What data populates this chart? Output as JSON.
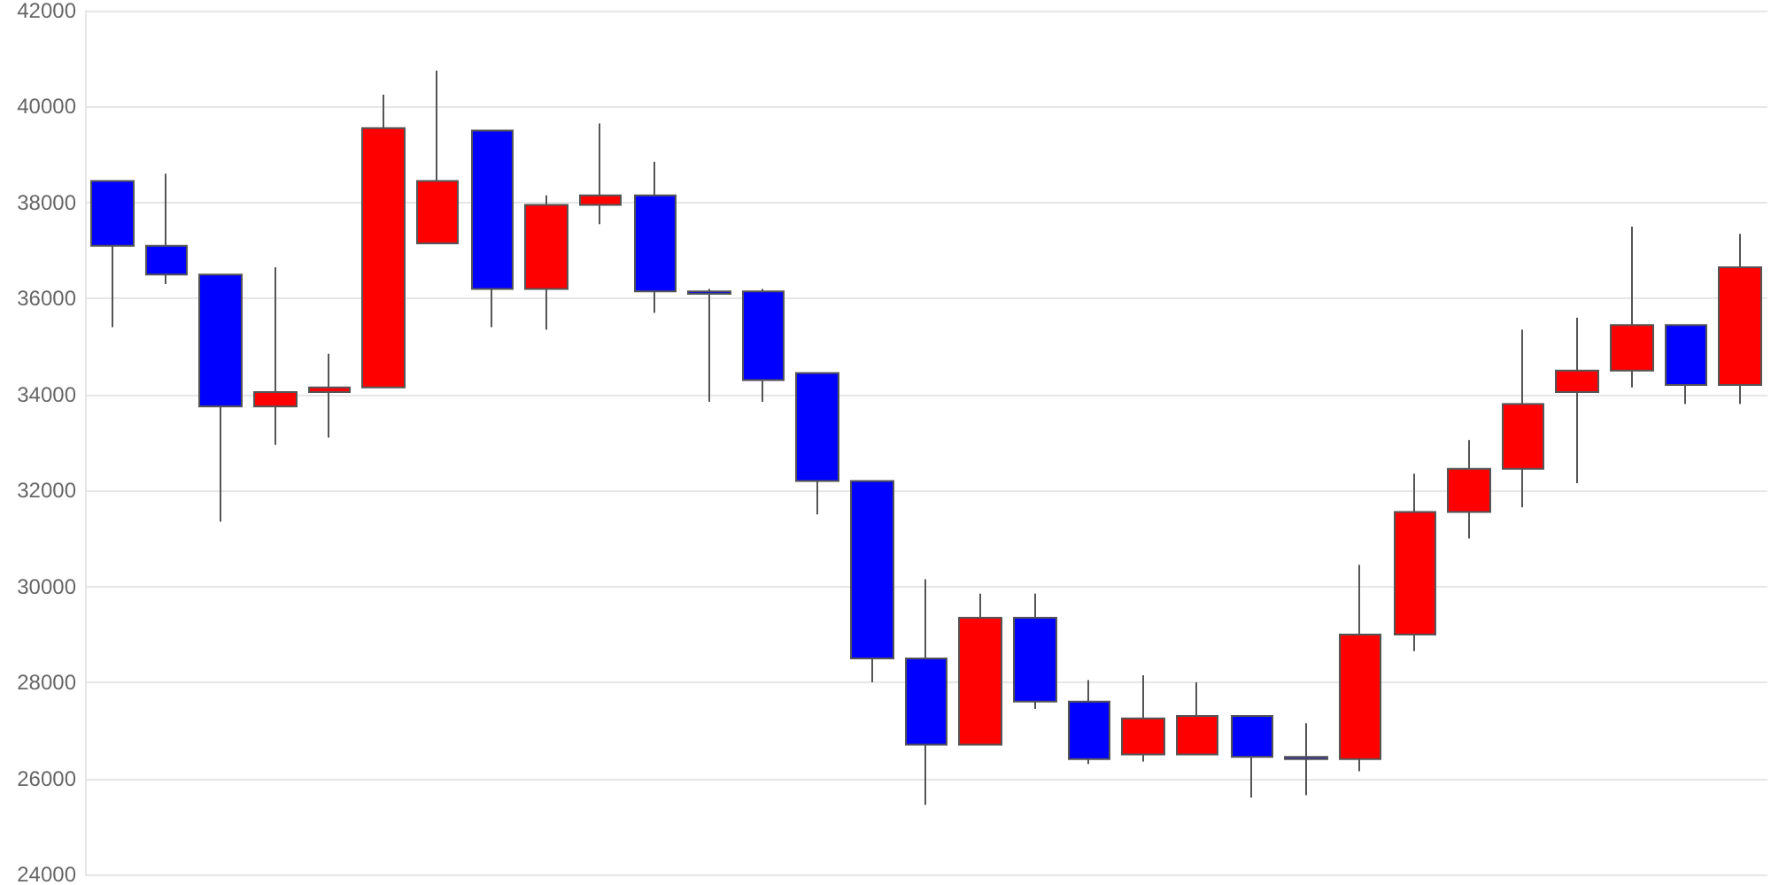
{
  "chart_data": {
    "type": "candlestick",
    "categories": [
      null,
      null,
      null,
      null,
      null,
      null,
      null,
      null,
      null,
      null,
      null,
      null,
      null,
      null,
      null,
      null,
      null,
      null,
      null,
      null,
      null,
      null,
      null,
      null,
      null,
      null,
      null,
      null,
      null,
      null,
      null
    ],
    "ohlc": [
      [
        38450,
        38450,
        35400,
        37100
      ],
      [
        37100,
        38600,
        36300,
        36500
      ],
      [
        36500,
        36500,
        31350,
        33750
      ],
      [
        33750,
        36650,
        32950,
        34050
      ],
      [
        34050,
        34850,
        33100,
        34150
      ],
      [
        34150,
        40250,
        34150,
        39550
      ],
      [
        37150,
        40750,
        37150,
        38450
      ],
      [
        39500,
        39500,
        35400,
        36200
      ],
      [
        36200,
        38150,
        35350,
        37950
      ],
      [
        37950,
        39650,
        37550,
        38150
      ],
      [
        38150,
        38850,
        35700,
        36150
      ],
      [
        36150,
        36200,
        33850,
        36100
      ],
      [
        36150,
        36200,
        33850,
        34300
      ],
      [
        34450,
        34450,
        31500,
        32200
      ],
      [
        32200,
        32200,
        28000,
        28500
      ],
      [
        28500,
        30150,
        25450,
        26700
      ],
      [
        26700,
        29850,
        26700,
        29350
      ],
      [
        29350,
        29850,
        27450,
        27600
      ],
      [
        27600,
        28050,
        26300,
        26400
      ],
      [
        26500,
        28150,
        26350,
        27250
      ],
      [
        26500,
        28000,
        26500,
        27300
      ],
      [
        27300,
        27300,
        25600,
        26450
      ],
      [
        26450,
        27150,
        25650,
        26400
      ],
      [
        26400,
        30450,
        26150,
        29000
      ],
      [
        29000,
        32350,
        28650,
        31550
      ],
      [
        31550,
        33050,
        31000,
        32450
      ],
      [
        32450,
        35350,
        31650,
        33800
      ],
      [
        34050,
        35600,
        32150,
        34500
      ],
      [
        34500,
        37500,
        34150,
        35450
      ],
      [
        35450,
        35450,
        33800,
        34200
      ],
      [
        34200,
        37350,
        33800,
        36650
      ]
    ],
    "colors": [
      "#0000ff",
      "#0000ff",
      "#0000ff",
      "#ff0000",
      "#ff0000",
      "#ff0000",
      "#ff0000",
      "#0000ff",
      "#ff0000",
      "#ff0000",
      "#0000ff",
      "#0000ff",
      "#0000ff",
      "#0000ff",
      "#0000ff",
      "#0000ff",
      "#ff0000",
      "#0000ff",
      "#0000ff",
      "#ff0000",
      "#ff0000",
      "#0000ff",
      "#0000ff",
      "#ff0000",
      "#ff0000",
      "#ff0000",
      "#ff0000",
      "#ff0000",
      "#ff0000",
      "#0000ff",
      "#ff0000"
    ],
    "ylim": [
      24000,
      42000
    ],
    "yticks": [
      24000,
      26000,
      28000,
      30000,
      32000,
      34000,
      36000,
      38000,
      40000,
      42000
    ],
    "grid": "y",
    "tick_labels": "y"
  }
}
